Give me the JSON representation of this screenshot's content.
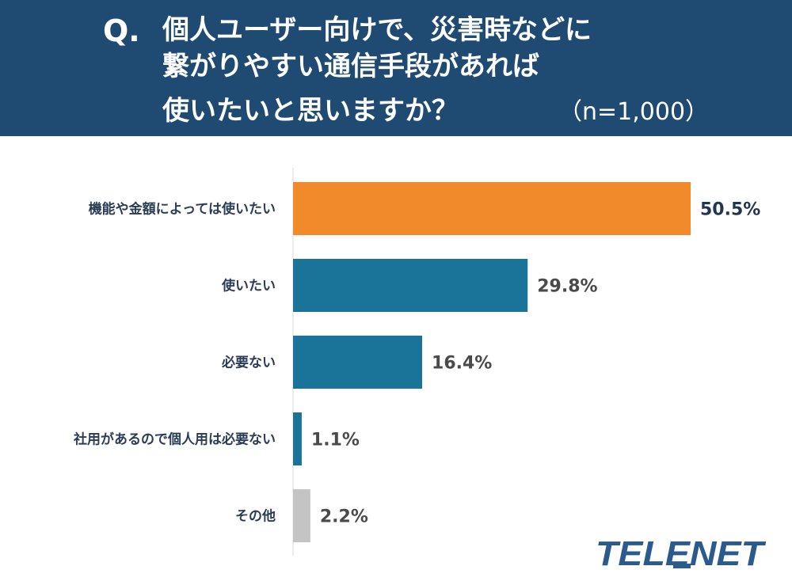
{
  "header": {
    "q_mark": "Q.",
    "line1": "個人ユーザー向けで、災害時などに",
    "line2": "繋がりやすい通信手段があれば",
    "line3": "使いたいと思いますか？",
    "sample": "（n=1,000）"
  },
  "colors": {
    "header_bg": "#1f4b73",
    "highlight": "#f08a2a",
    "primary": "#1a7399",
    "other": "#c4c4c4",
    "logo": "#2a5b8c"
  },
  "logo": {
    "text": "TELENET"
  },
  "chart_data": {
    "type": "bar",
    "orientation": "horizontal",
    "categories": [
      "機能や金額によっては使いたい",
      "使いたい",
      "必要ない",
      "社用があるので個人用は必要ない",
      "その他"
    ],
    "values": [
      50.5,
      29.8,
      16.4,
      1.1,
      2.2
    ],
    "value_labels": [
      "50.5%",
      "29.8%",
      "16.4%",
      "1.1%",
      "2.2%"
    ],
    "bar_colors": [
      "#f08a2a",
      "#1a7399",
      "#1a7399",
      "#1a7399",
      "#c4c4c4"
    ],
    "unit": "%",
    "xlim": [
      0,
      50.5
    ],
    "grid": false,
    "legend": "none"
  }
}
